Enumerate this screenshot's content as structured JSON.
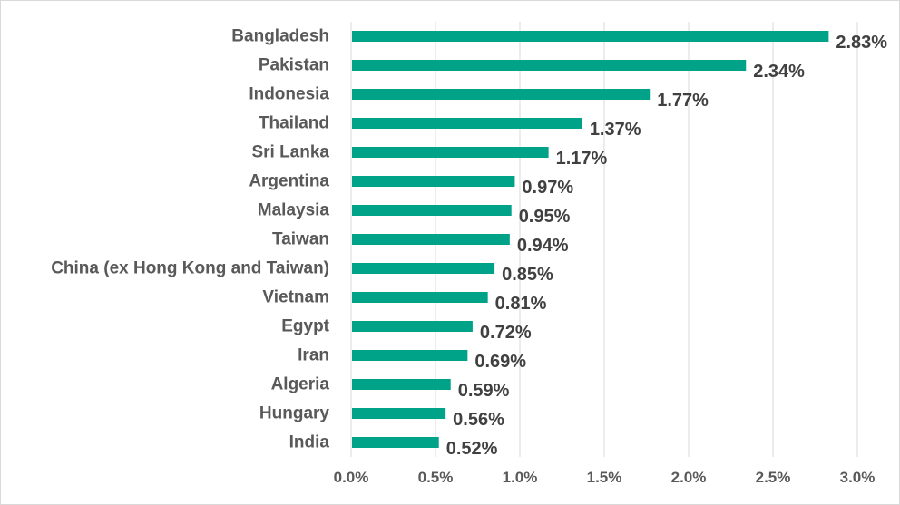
{
  "chart_data": {
    "type": "bar",
    "orientation": "horizontal",
    "categories": [
      "Bangladesh",
      "Pakistan",
      "Indonesia",
      "Thailand",
      "Sri Lanka",
      "Argentina",
      "Malaysia",
      "Taiwan",
      "China (ex Hong Kong and Taiwan)",
      "Vietnam",
      "Egypt",
      "Iran",
      "Algeria",
      "Hungary",
      "India"
    ],
    "values": [
      2.83,
      2.34,
      1.77,
      1.37,
      1.17,
      0.97,
      0.95,
      0.94,
      0.85,
      0.81,
      0.72,
      0.69,
      0.59,
      0.56,
      0.52
    ],
    "data_labels": [
      "2.83%",
      "2.34%",
      "1.77%",
      "1.37%",
      "1.17%",
      "0.97%",
      "0.95%",
      "0.94%",
      "0.85%",
      "0.81%",
      "0.72%",
      "0.69%",
      "0.59%",
      "0.56%",
      "0.52%"
    ],
    "x_ticks": [
      0,
      0.5,
      1.0,
      1.5,
      2.0,
      2.5,
      3.0
    ],
    "x_tick_labels": [
      "0.0%",
      "0.5%",
      "1.0%",
      "1.5%",
      "2.0%",
      "2.5%",
      "3.0%"
    ],
    "xlim": [
      0,
      3.0
    ],
    "title": "",
    "xlabel": "",
    "ylabel": "",
    "grid": "vertical",
    "legend": "none",
    "bar_color": "#00A388"
  }
}
